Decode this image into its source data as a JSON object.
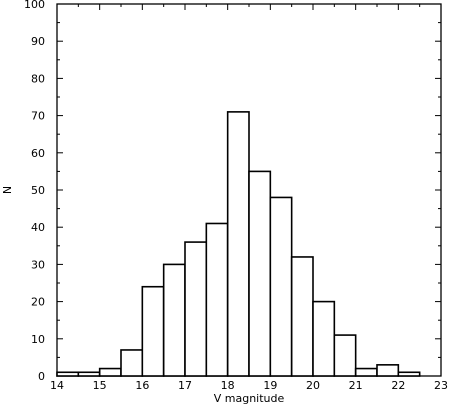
{
  "chart_data": {
    "type": "bar",
    "xlabel": "V magnitude",
    "ylabel": "N",
    "xlim": [
      14,
      23
    ],
    "ylim": [
      0,
      100
    ],
    "grid": false,
    "bin_width": 0.5,
    "bins": [
      {
        "start": 14.0,
        "end": 14.5,
        "value": 1
      },
      {
        "start": 14.5,
        "end": 15.0,
        "value": 1
      },
      {
        "start": 15.0,
        "end": 15.5,
        "value": 2
      },
      {
        "start": 15.5,
        "end": 16.0,
        "value": 7
      },
      {
        "start": 16.0,
        "end": 16.5,
        "value": 24
      },
      {
        "start": 16.5,
        "end": 17.0,
        "value": 30
      },
      {
        "start": 17.0,
        "end": 17.5,
        "value": 36
      },
      {
        "start": 17.5,
        "end": 18.0,
        "value": 41
      },
      {
        "start": 18.0,
        "end": 18.5,
        "value": 71
      },
      {
        "start": 18.5,
        "end": 19.0,
        "value": 55
      },
      {
        "start": 19.0,
        "end": 19.5,
        "value": 48
      },
      {
        "start": 19.5,
        "end": 20.0,
        "value": 32
      },
      {
        "start": 20.0,
        "end": 20.5,
        "value": 20
      },
      {
        "start": 20.5,
        "end": 21.0,
        "value": 11
      },
      {
        "start": 21.0,
        "end": 21.5,
        "value": 2
      },
      {
        "start": 21.5,
        "end": 22.0,
        "value": 3
      },
      {
        "start": 22.0,
        "end": 22.5,
        "value": 1
      }
    ],
    "x_ticks": [
      "14",
      "15",
      "16",
      "17",
      "18",
      "19",
      "20",
      "21",
      "22",
      "23"
    ],
    "y_ticks": [
      "0",
      "10",
      "20",
      "30",
      "40",
      "50",
      "60",
      "70",
      "80",
      "90",
      "100"
    ]
  }
}
